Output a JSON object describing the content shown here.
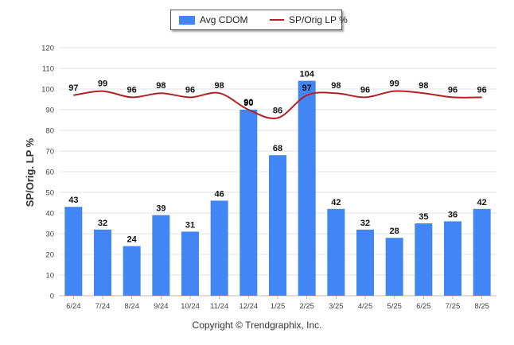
{
  "legend": {
    "bar_label": "Avg CDOM",
    "line_label": "SP/Orig LP %"
  },
  "copyright": "Copyright © Trendgraphix, Inc.",
  "colors": {
    "bar": "#4285f4",
    "line": "#b22222",
    "grid": "#e3e3e3",
    "axis_text": "#444444"
  },
  "chart_data": {
    "type": "bar",
    "title": "",
    "xlabel": "",
    "ylabel": "SP/Orig. LP %",
    "ylim": [
      0,
      120
    ],
    "yticks": [
      0,
      10,
      20,
      30,
      40,
      50,
      60,
      70,
      80,
      90,
      100,
      110,
      120
    ],
    "grid": true,
    "legend_position": "top-center",
    "categories": [
      "6/24",
      "7/24",
      "8/24",
      "9/24",
      "10/24",
      "11/24",
      "12/24",
      "1/25",
      "2/25",
      "3/25",
      "4/25",
      "5/25",
      "6/25",
      "7/25",
      "8/25"
    ],
    "series": [
      {
        "name": "Avg CDOM",
        "type": "bar",
        "values": [
          43,
          32,
          24,
          39,
          31,
          46,
          90,
          68,
          104,
          42,
          32,
          28,
          35,
          36,
          42
        ]
      },
      {
        "name": "SP/Orig LP %",
        "type": "line",
        "values": [
          97,
          99,
          96,
          98,
          96,
          98,
          90,
          86,
          97,
          98,
          96,
          99,
          98,
          96,
          96
        ]
      }
    ]
  }
}
